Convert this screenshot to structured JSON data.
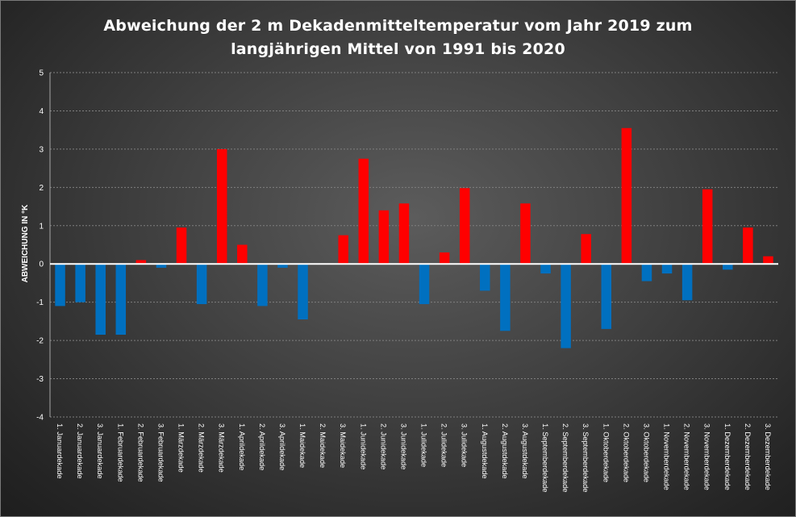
{
  "chart_data": {
    "type": "bar",
    "title_lines": [
      "Abweichung der 2 m Dekadenmitteltemperatur  vom Jahr 2019 zum",
      "langjährigen Mittel von 1991 bis 2020"
    ],
    "xlabel": "",
    "ylabel": "ABWEICHUNG IN °K",
    "ylim": [
      -4,
      5
    ],
    "yticks": [
      5,
      4,
      3,
      2,
      1,
      0,
      -1,
      -2,
      -3,
      -4
    ],
    "grid": true,
    "legend": "none",
    "colors": {
      "positive": "#ff0000",
      "negative": "#0070c0",
      "zero_line": "#ffffff",
      "grid": "#7f7f7f"
    },
    "categories": [
      "1. Januardekade",
      "2. Januardekade",
      "3. Januardekade",
      "1. Februardekade",
      "2. Februardekade",
      "3. Februardekade",
      "1. Märzdekade",
      "2. Märzdekade",
      "3. Märzdekade",
      "1. Aprildekade",
      "2. Aprildekade",
      "3. Aprildekade",
      "1. Maidekade",
      "2. Maidekade",
      "3. Maidekade",
      "1. Junidekade",
      "2. Junidekade",
      "3. Junidekade",
      "1. Julidekade",
      "2. Julidekade",
      "3. Julidekade",
      "1. Augustdekade",
      "2. Augustdekade",
      "3. Augustdekade",
      "1. Septemberdekade",
      "2. Septemberdekade",
      "3. Septemberdekade",
      "1. Oktoberdekade",
      "2. Oktoberdekade",
      "3. Oktoberdekade",
      "1. Novemberdekade",
      "2. Novemberdekade",
      "3. Novemberdekade",
      "1. Dezemberdekade",
      "2. Dezemberdekade",
      "3. Dezemberdekade"
    ],
    "values": [
      -1.1,
      -1.0,
      -1.85,
      -1.85,
      0.1,
      -0.1,
      0.95,
      -1.05,
      3.0,
      0.5,
      -1.1,
      -0.1,
      -1.45,
      0.0,
      0.75,
      2.75,
      1.4,
      1.58,
      -1.05,
      0.3,
      1.98,
      -0.7,
      -1.75,
      1.58,
      -0.25,
      -2.2,
      0.78,
      -1.7,
      3.55,
      -0.45,
      -0.25,
      -0.95,
      1.95,
      -0.15,
      0.95,
      0.2
    ]
  }
}
